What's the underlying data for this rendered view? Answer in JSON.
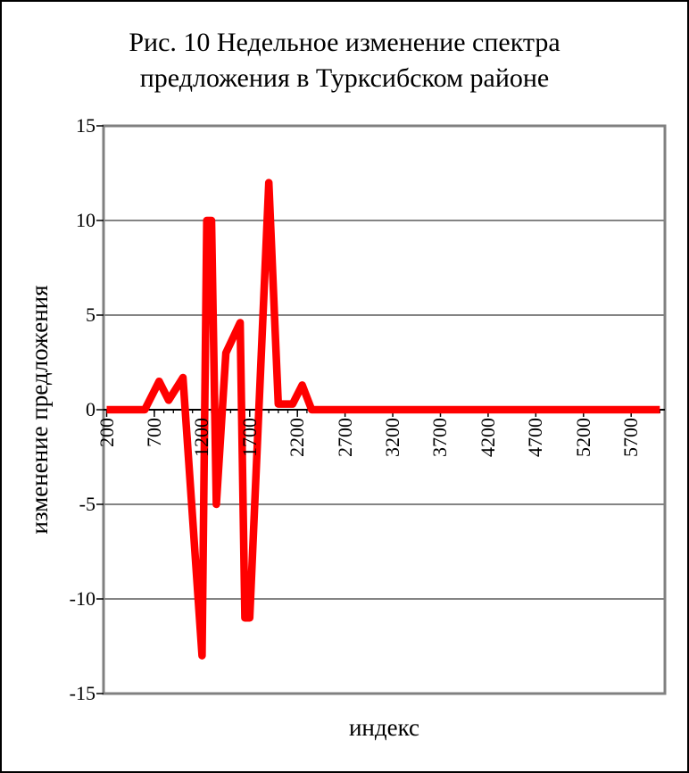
{
  "figure": {
    "title_line1": "Рис. 10 Недельное изменение спектра",
    "title_line2": "предложения в Турксибском районе",
    "x_axis_title": "индекс",
    "y_axis_title": "изменение предложения"
  },
  "chart_data": {
    "type": "line",
    "title": "Рис. 10 Недельное изменение спектра предложения в Турксибском районе",
    "xlabel": "индекс",
    "ylabel": "изменение предложения",
    "xlim": [
      200,
      6050
    ],
    "ylim": [
      -15,
      15
    ],
    "x_tick_labels": [
      200,
      700,
      1200,
      1700,
      2200,
      2700,
      3200,
      3700,
      4200,
      4700,
      5200,
      5700
    ],
    "x_minor_tick_step": 100,
    "y_ticks": [
      15,
      10,
      5,
      0,
      -5,
      -10,
      -15
    ],
    "grid": "horizontal",
    "legend": "none",
    "series": [
      {
        "name": "изменение предложения",
        "color": "#ff0000",
        "points": [
          [
            200,
            0
          ],
          [
            600,
            0
          ],
          [
            750,
            1.5
          ],
          [
            850,
            0.5
          ],
          [
            1000,
            1.7
          ],
          [
            1200,
            -13
          ],
          [
            1250,
            10
          ],
          [
            1300,
            10
          ],
          [
            1350,
            -5
          ],
          [
            1450,
            3
          ],
          [
            1600,
            4.6
          ],
          [
            1650,
            -11
          ],
          [
            1700,
            -11
          ],
          [
            1900,
            12
          ],
          [
            2000,
            0.3
          ],
          [
            2150,
            0.3
          ],
          [
            2250,
            1.3
          ],
          [
            2350,
            0
          ],
          [
            6000,
            0
          ]
        ]
      }
    ]
  },
  "style": {
    "series_color": "#ff0000",
    "plot_border_color": "#808080",
    "gridline_color": "#3a3a3a",
    "axis_color": "#000000",
    "background_color": "#ffffff",
    "text_color": "#000000"
  }
}
